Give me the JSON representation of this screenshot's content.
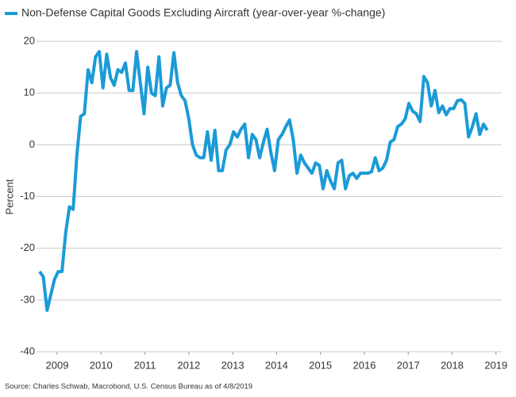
{
  "chart_data": {
    "type": "line",
    "legend_position": "top-left",
    "ylabel": "Percent",
    "source": "Source: Charles Schwab, Macrobond, U.S. Census Bureau as of 4/8/2019",
    "xlim": [
      2008.53,
      2019.13
    ],
    "xticks": [
      2009,
      2010,
      2011,
      2012,
      2013,
      2014,
      2015,
      2016,
      2017,
      2018,
      2019
    ],
    "ylim": [
      -40,
      20
    ],
    "yticks": [
      -40,
      -30,
      -20,
      -10,
      0,
      10,
      20
    ],
    "grid": true,
    "x": [
      2008.6,
      2008.685,
      2008.77,
      2008.855,
      2008.94,
      2009.025,
      2009.11,
      2009.195,
      2009.28,
      2009.365,
      2009.45,
      2009.535,
      2009.62,
      2009.705,
      2009.79,
      2009.875,
      2009.96,
      2010.045,
      2010.13,
      2010.215,
      2010.3,
      2010.385,
      2010.47,
      2010.555,
      2010.64,
      2010.725,
      2010.81,
      2010.895,
      2010.98,
      2011.065,
      2011.15,
      2011.235,
      2011.32,
      2011.405,
      2011.49,
      2011.575,
      2011.66,
      2011.745,
      2011.83,
      2011.915,
      2012.0,
      2012.085,
      2012.17,
      2012.255,
      2012.34,
      2012.425,
      2012.51,
      2012.595,
      2012.68,
      2012.765,
      2012.85,
      2012.935,
      2013.02,
      2013.105,
      2013.19,
      2013.275,
      2013.36,
      2013.445,
      2013.53,
      2013.615,
      2013.7,
      2013.785,
      2013.87,
      2013.955,
      2014.04,
      2014.125,
      2014.21,
      2014.295,
      2014.38,
      2014.465,
      2014.55,
      2014.635,
      2014.72,
      2014.805,
      2014.89,
      2014.975,
      2015.06,
      2015.145,
      2015.23,
      2015.315,
      2015.4,
      2015.485,
      2015.57,
      2015.655,
      2015.74,
      2015.825,
      2015.91,
      2015.995,
      2016.08,
      2016.165,
      2016.25,
      2016.335,
      2016.42,
      2016.505,
      2016.59,
      2016.675,
      2016.76,
      2016.845,
      2016.93,
      2017.015,
      2017.1,
      2017.185,
      2017.27,
      2017.355,
      2017.44,
      2017.525,
      2017.61,
      2017.695,
      2017.78,
      2017.865,
      2017.95,
      2018.035,
      2018.12,
      2018.205,
      2018.29,
      2018.375,
      2018.46,
      2018.545,
      2018.63,
      2018.715,
      2018.8
    ],
    "series": [
      {
        "name": "Non-Defense Capital Goods Excluding Aircraft (year-over-year %-change)",
        "color": "#1a9bd7",
        "values": [
          -24.5,
          -25.5,
          -32,
          -29,
          -26,
          -24.5,
          -24.5,
          -17,
          -12,
          -12.5,
          -2,
          5.5,
          6,
          14.5,
          12,
          17,
          18,
          11,
          17.5,
          13,
          11.5,
          14.5,
          14,
          15.8,
          10.5,
          10.5,
          18,
          12,
          6,
          15,
          10,
          9.5,
          17,
          7.5,
          11,
          11.5,
          17.8,
          12,
          9.5,
          8.5,
          5,
          0,
          -2,
          -2.5,
          -2.5,
          2.5,
          -3,
          2.8,
          -5,
          -5,
          -1,
          0,
          2.5,
          1.5,
          3,
          4,
          -2.5,
          2,
          1,
          -2.5,
          0.5,
          3,
          -1.5,
          -5,
          1,
          2,
          3.5,
          4.8,
          1,
          -5.5,
          -2,
          -3.5,
          -4.5,
          -5.5,
          -3.5,
          -4,
          -8.5,
          -5,
          -7,
          -8.5,
          -3.5,
          -3,
          -8.5,
          -6,
          -5.5,
          -6.5,
          -5.5,
          -5.5,
          -5.5,
          -5.2,
          -2.5,
          -5,
          -4.5,
          -3,
          0.5,
          1,
          3.5,
          4,
          5,
          8,
          6.5,
          6,
          4.5,
          13.2,
          12,
          7.5,
          10.5,
          6.2,
          7.5,
          5.8,
          7,
          7,
          8.5,
          8.7,
          8,
          1.5,
          3.5,
          6,
          2,
          4,
          2.8
        ]
      }
    ]
  }
}
